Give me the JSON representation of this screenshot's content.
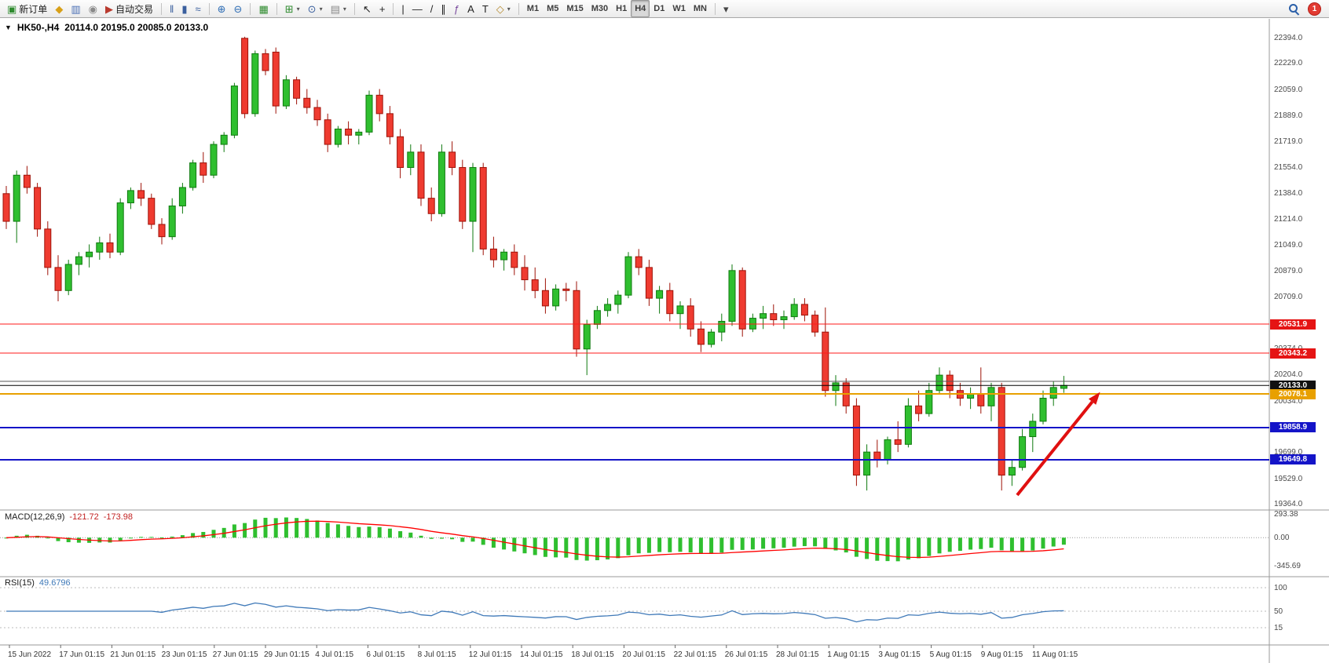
{
  "toolbar": {
    "notification_count": "1",
    "groups": [
      {
        "name": "trade",
        "items": [
          {
            "name": "new-order-button",
            "glyph": "▣",
            "glyph_color": "#2e8b2e",
            "label": "新订单"
          },
          {
            "name": "metaeditor-button",
            "glyph": "◆",
            "glyph_color": "#d8a018"
          },
          {
            "name": "market-depth-button",
            "glyph": "▥",
            "glyph_color": "#4a6fb5"
          },
          {
            "name": "community-button",
            "glyph": "◉",
            "glyph_color": "#8a8a8a"
          },
          {
            "name": "autotrading-button",
            "glyph": "▶",
            "glyph_color": "#b93a2e",
            "label": "自动交易"
          }
        ]
      },
      {
        "name": "chart-modes",
        "items": [
          {
            "name": "bar-chart-button",
            "glyph": "‖",
            "glyph_color": "#3a5f9e"
          },
          {
            "name": "candlestick-chart-button",
            "glyph": "▮",
            "glyph_color": "#3a5f9e"
          },
          {
            "name": "line-chart-button",
            "glyph": "≈",
            "glyph_color": "#3a5f9e"
          }
        ]
      },
      {
        "name": "zoom",
        "items": [
          {
            "name": "zoom-in-button",
            "glyph": "⊕",
            "glyph_color": "#2e6db5"
          },
          {
            "name": "zoom-out-button",
            "glyph": "⊖",
            "glyph_color": "#2e6db5"
          }
        ]
      },
      {
        "name": "windows",
        "items": [
          {
            "name": "tile-windows-button",
            "glyph": "▦",
            "glyph_color": "#2e8b2e"
          }
        ]
      },
      {
        "name": "chart-tools",
        "items": [
          {
            "name": "indicators-button",
            "glyph": "⊞",
            "glyph_color": "#2e8b2e",
            "dropdown": true
          },
          {
            "name": "periods-button",
            "glyph": "⊙",
            "glyph_color": "#3a5f9e",
            "dropdown": true
          },
          {
            "name": "templates-button",
            "glyph": "▤",
            "glyph_color": "#8a8a8a",
            "dropdown": true
          }
        ]
      },
      {
        "name": "cursor",
        "items": [
          {
            "name": "cursor-button",
            "glyph": "↖",
            "glyph_color": "#222222"
          },
          {
            "name": "crosshair-button",
            "glyph": "+",
            "glyph_color": "#222222"
          }
        ]
      },
      {
        "name": "objects",
        "items": [
          {
            "name": "vertical-line-button",
            "glyph": "|",
            "glyph_color": "#222222"
          },
          {
            "name": "horizontal-line-button",
            "glyph": "—",
            "glyph_color": "#222222"
          },
          {
            "name": "trend-line-button",
            "glyph": "/",
            "glyph_color": "#222222"
          },
          {
            "name": "equidistant-channel-button",
            "glyph": "∥",
            "glyph_color": "#222222"
          },
          {
            "name": "fibonacci-button",
            "glyph": "ƒ",
            "glyph_color": "#7a4a9e"
          },
          {
            "name": "text-button",
            "glyph": "A",
            "glyph_color": "#222222"
          },
          {
            "name": "text-label-button",
            "glyph": "T",
            "glyph_color": "#222222"
          },
          {
            "name": "shapes-button",
            "glyph": "◇",
            "glyph_color": "#b58a2e",
            "dropdown": true
          }
        ]
      },
      {
        "name": "timeframes",
        "items": [
          {
            "name": "timeframe-m1-button",
            "text": "M1"
          },
          {
            "name": "timeframe-m5-button",
            "text": "M5"
          },
          {
            "name": "timeframe-m15-button",
            "text": "M15"
          },
          {
            "name": "timeframe-m30-button",
            "text": "M30"
          },
          {
            "name": "timeframe-h1-button",
            "text": "H1"
          },
          {
            "name": "timeframe-h4-button",
            "text": "H4",
            "active": true
          },
          {
            "name": "timeframe-d1-button",
            "text": "D1"
          },
          {
            "name": "timeframe-w1-button",
            "text": "W1"
          },
          {
            "name": "timeframe-mn-button",
            "text": "MN"
          }
        ]
      },
      {
        "name": "overflow",
        "items": [
          {
            "name": "toolbar-overflow-button",
            "glyph": "▾",
            "glyph_color": "#444444"
          }
        ]
      }
    ]
  },
  "chart": {
    "header": {
      "collapse_glyph": "▼",
      "title": "HK50-,H4",
      "ohlc_text": "20114.0 20195.0 20085.0 20133.0"
    }
  },
  "chart_data": {
    "type": "candlestick",
    "symbol": "HK50-",
    "timeframe": "H4",
    "ohlc_header": {
      "open": 20114.0,
      "high": 20195.0,
      "low": 20085.0,
      "close": 20133.0
    },
    "colors": {
      "up_fill": "#2fbf2f",
      "up_stroke": "#0f7a0f",
      "down_fill": "#ef3b30",
      "down_stroke": "#9e1208",
      "macd_hist": "#2fbf2f",
      "macd_signal": "#ff0000",
      "rsi_line": "#3f79b8",
      "arrow": "#e01010"
    },
    "candles": [
      [
        21380,
        21430,
        21150,
        21200
      ],
      [
        21200,
        21530,
        21060,
        21500
      ],
      [
        21500,
        21560,
        21380,
        21420
      ],
      [
        21420,
        21450,
        21100,
        21150
      ],
      [
        21150,
        21200,
        20850,
        20900
      ],
      [
        20900,
        20980,
        20680,
        20750
      ],
      [
        20750,
        20950,
        20720,
        20920
      ],
      [
        20920,
        21000,
        20850,
        20970
      ],
      [
        20970,
        21050,
        20900,
        21000
      ],
      [
        21000,
        21100,
        20950,
        21060
      ],
      [
        21060,
        21120,
        20960,
        21000
      ],
      [
        21000,
        21350,
        20980,
        21320
      ],
      [
        21320,
        21420,
        21280,
        21400
      ],
      [
        21400,
        21450,
        21300,
        21350
      ],
      [
        21350,
        21380,
        21150,
        21180
      ],
      [
        21180,
        21220,
        21050,
        21100
      ],
      [
        21100,
        21350,
        21080,
        21300
      ],
      [
        21300,
        21450,
        21250,
        21420
      ],
      [
        21420,
        21600,
        21400,
        21580
      ],
      [
        21580,
        21650,
        21450,
        21500
      ],
      [
        21500,
        21720,
        21480,
        21700
      ],
      [
        21700,
        21780,
        21650,
        21760
      ],
      [
        21760,
        22100,
        21740,
        22080
      ],
      [
        22390,
        22400,
        21870,
        21900
      ],
      [
        21900,
        22310,
        21880,
        22290
      ],
      [
        22290,
        22320,
        22150,
        22180
      ],
      [
        22300,
        22330,
        21900,
        21950
      ],
      [
        21950,
        22150,
        21930,
        22120
      ],
      [
        22120,
        22140,
        21960,
        22000
      ],
      [
        22000,
        22060,
        21900,
        21940
      ],
      [
        21940,
        21990,
        21820,
        21860
      ],
      [
        21860,
        21900,
        21650,
        21700
      ],
      [
        21700,
        21820,
        21680,
        21800
      ],
      [
        21800,
        21850,
        21700,
        21760
      ],
      [
        21760,
        21800,
        21700,
        21780
      ],
      [
        21780,
        22050,
        21760,
        22020
      ],
      [
        22020,
        22060,
        21850,
        21900
      ],
      [
        21900,
        21950,
        21700,
        21750
      ],
      [
        21750,
        21800,
        21480,
        21550
      ],
      [
        21550,
        21700,
        21500,
        21650
      ],
      [
        21650,
        21700,
        21300,
        21350
      ],
      [
        21350,
        21420,
        21200,
        21250
      ],
      [
        21250,
        21700,
        21230,
        21650
      ],
      [
        21650,
        21720,
        21500,
        21550
      ],
      [
        21550,
        21600,
        21150,
        21200
      ],
      [
        21200,
        21580,
        21000,
        21550
      ],
      [
        21550,
        21580,
        20980,
        21020
      ],
      [
        21020,
        21100,
        20900,
        20950
      ],
      [
        20950,
        21020,
        20880,
        21000
      ],
      [
        21000,
        21050,
        20850,
        20900
      ],
      [
        20900,
        20980,
        20750,
        20820
      ],
      [
        20820,
        20900,
        20700,
        20750
      ],
      [
        20750,
        20830,
        20600,
        20650
      ],
      [
        20650,
        20790,
        20620,
        20760
      ],
      [
        20760,
        20800,
        20680,
        20750
      ],
      [
        20750,
        20810,
        20320,
        20370
      ],
      [
        20370,
        20560,
        20200,
        20530
      ],
      [
        20530,
        20650,
        20500,
        20620
      ],
      [
        20620,
        20700,
        20580,
        20660
      ],
      [
        20660,
        20750,
        20600,
        20720
      ],
      [
        20720,
        21000,
        20700,
        20970
      ],
      [
        20970,
        21020,
        20850,
        20900
      ],
      [
        20900,
        20950,
        20650,
        20700
      ],
      [
        20700,
        20780,
        20600,
        20750
      ],
      [
        20750,
        20800,
        20550,
        20600
      ],
      [
        20600,
        20680,
        20500,
        20650
      ],
      [
        20650,
        20700,
        20450,
        20500
      ],
      [
        20500,
        20550,
        20350,
        20400
      ],
      [
        20400,
        20500,
        20380,
        20480
      ],
      [
        20480,
        20600,
        20420,
        20550
      ],
      [
        20550,
        20920,
        20520,
        20880
      ],
      [
        20880,
        20900,
        20450,
        20500
      ],
      [
        20500,
        20600,
        20480,
        20570
      ],
      [
        20570,
        20650,
        20500,
        20600
      ],
      [
        20600,
        20660,
        20520,
        20560
      ],
      [
        20560,
        20620,
        20500,
        20580
      ],
      [
        20580,
        20700,
        20560,
        20660
      ],
      [
        20660,
        20700,
        20550,
        20590
      ],
      [
        20590,
        20620,
        20450,
        20480
      ],
      [
        20480,
        20640,
        20060,
        20100
      ],
      [
        20100,
        20200,
        20000,
        20150
      ],
      [
        20150,
        20180,
        19950,
        20000
      ],
      [
        20000,
        20050,
        19480,
        19550
      ],
      [
        19550,
        19750,
        19450,
        19700
      ],
      [
        19700,
        19780,
        19600,
        19650
      ],
      [
        19650,
        19800,
        19620,
        19780
      ],
      [
        19780,
        19900,
        19700,
        19750
      ],
      [
        19750,
        20050,
        19730,
        20000
      ],
      [
        20000,
        20100,
        19900,
        19950
      ],
      [
        19950,
        20150,
        19930,
        20100
      ],
      [
        20100,
        20250,
        20080,
        20200
      ],
      [
        20200,
        20230,
        20050,
        20100
      ],
      [
        20100,
        20150,
        20000,
        20050
      ],
      [
        20050,
        20120,
        19980,
        20080
      ],
      [
        20080,
        20250,
        19950,
        20000
      ],
      [
        20000,
        20150,
        19900,
        20120
      ],
      [
        20120,
        20150,
        19450,
        19550
      ],
      [
        19550,
        19650,
        19480,
        19600
      ],
      [
        19600,
        19850,
        19580,
        19800
      ],
      [
        19800,
        19950,
        19700,
        19900
      ],
      [
        19900,
        20100,
        19880,
        20050
      ],
      [
        20050,
        20160,
        20000,
        20120
      ],
      [
        20114,
        20195,
        20085,
        20133
      ]
    ],
    "y_axis": {
      "anchor_top": 22394.0,
      "anchor_bottom": 19364.0,
      "labels": [
        "22394.0",
        "22229.0",
        "22059.0",
        "21889.0",
        "21719.0",
        "21554.0",
        "21384.0",
        "21214.0",
        "21049.0",
        "20879.0",
        "20709.0",
        "20539.0",
        "20374.0",
        "20204.0",
        "20034.0",
        "19869.0",
        "19699.0",
        "19529.0",
        "19364.0"
      ]
    },
    "time_labels": [
      "15 Jun 2022",
      "17 Jun 01:15",
      "21 Jun 01:15",
      "23 Jun 01:15",
      "27 Jun 01:15",
      "29 Jun 01:15",
      "4 Jul 01:15",
      "6 Jul 01:15",
      "8 Jul 01:15",
      "12 Jul 01:15",
      "14 Jul 01:15",
      "18 Jul 01:15",
      "20 Jul 01:15",
      "22 Jul 01:15",
      "26 Jul 01:15",
      "28 Jul 01:15",
      "1 Aug 01:15",
      "3 Aug 01:15",
      "5 Aug 01:15",
      "9 Aug 01:15",
      "11 Aug 01:15"
    ],
    "hlines": [
      {
        "price": 20531.9,
        "label": "20531.9",
        "line_color": "#ff1a1a",
        "line_width": 1,
        "badge_bg": "#e51414"
      },
      {
        "price": 20343.2,
        "label": "20343.2",
        "line_color": "#ff1a1a",
        "line_width": 1,
        "badge_bg": "#e51414"
      },
      {
        "price": 20160.0,
        "label": null,
        "line_color": "#555555",
        "line_width": 1,
        "badge_bg": null
      },
      {
        "price": 20133.0,
        "label": "20133.0",
        "line_color": "#000000",
        "line_width": 1,
        "badge_bg": "#111111"
      },
      {
        "price": 20078.1,
        "label": "20078.1",
        "line_color": "#e8a000",
        "line_width": 2,
        "badge_bg": "#e8a000"
      },
      {
        "price": 19858.9,
        "label": "19858.9",
        "line_color": "#1414c8",
        "line_width": 2,
        "badge_bg": "#1414c8"
      },
      {
        "price": 19649.8,
        "label": "19649.8",
        "line_color": "#1414c8",
        "line_width": 2,
        "badge_bg": "#1414c8"
      }
    ],
    "trend_arrow": {
      "from_index": 97.5,
      "from_price": 19420,
      "to_index": 105.5,
      "to_price": 20090,
      "width": 4
    },
    "indicators": {
      "macd": {
        "label": "MACD(12,26,9)",
        "value_main": "-121.72",
        "value_signal": "-173.98",
        "params": [
          12,
          26,
          9
        ],
        "scale": [
          {
            "value": 293.38,
            "label": "293.38"
          },
          {
            "value": 0,
            "label": "0.00"
          },
          {
            "value": -345.69,
            "label": "-345.69"
          }
        ]
      },
      "rsi": {
        "label": "RSI(15)",
        "value_text": "49.6796",
        "period": 15,
        "scale": [
          {
            "value": 100,
            "label": "100"
          },
          {
            "value": 50,
            "label": "50"
          },
          {
            "value": 15,
            "label": "15"
          }
        ]
      }
    }
  }
}
